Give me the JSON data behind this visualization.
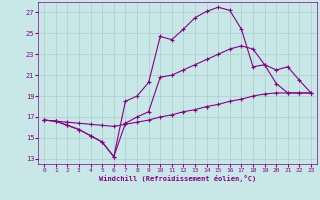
{
  "xlabel": "Windchill (Refroidissement éolien,°C)",
  "bg_color": "#c8e8e8",
  "grid_color": "#aacccc",
  "line_color": "#880088",
  "xlim": [
    -0.5,
    23.5
  ],
  "ylim": [
    12.5,
    28.0
  ],
  "yticks": [
    13,
    15,
    17,
    19,
    21,
    23,
    25,
    27
  ],
  "xticks": [
    0,
    1,
    2,
    3,
    4,
    5,
    6,
    7,
    8,
    9,
    10,
    11,
    12,
    13,
    14,
    15,
    16,
    17,
    18,
    19,
    20,
    21,
    22,
    23
  ],
  "line1_x": [
    0,
    1,
    2,
    3,
    4,
    5,
    6,
    7,
    8,
    9,
    10,
    11,
    12,
    13,
    14,
    15,
    16,
    17,
    18,
    19,
    20,
    21,
    22,
    23
  ],
  "line1_y": [
    16.7,
    16.6,
    16.2,
    15.8,
    15.2,
    14.6,
    13.2,
    18.5,
    19.0,
    20.3,
    24.7,
    24.4,
    25.4,
    26.5,
    27.1,
    27.5,
    27.2,
    25.4,
    21.8,
    22.0,
    20.2,
    19.3,
    19.3,
    19.3
  ],
  "line2_x": [
    0,
    1,
    2,
    3,
    4,
    5,
    6,
    7,
    8,
    9,
    10,
    11,
    12,
    13,
    14,
    15,
    16,
    17,
    18,
    19,
    20,
    21,
    22,
    23
  ],
  "line2_y": [
    16.7,
    16.6,
    16.2,
    15.8,
    15.2,
    14.6,
    13.2,
    16.4,
    17.0,
    17.5,
    20.8,
    21.0,
    21.5,
    22.0,
    22.5,
    23.0,
    23.5,
    23.8,
    23.5,
    22.0,
    21.5,
    21.8,
    20.5,
    19.3
  ],
  "line3_x": [
    0,
    1,
    2,
    3,
    4,
    5,
    6,
    7,
    8,
    9,
    10,
    11,
    12,
    13,
    14,
    15,
    16,
    17,
    18,
    19,
    20,
    21,
    22,
    23
  ],
  "line3_y": [
    16.7,
    16.6,
    16.5,
    16.4,
    16.3,
    16.2,
    16.1,
    16.3,
    16.5,
    16.7,
    17.0,
    17.2,
    17.5,
    17.7,
    18.0,
    18.2,
    18.5,
    18.7,
    19.0,
    19.2,
    19.3,
    19.3,
    19.3,
    19.3
  ]
}
